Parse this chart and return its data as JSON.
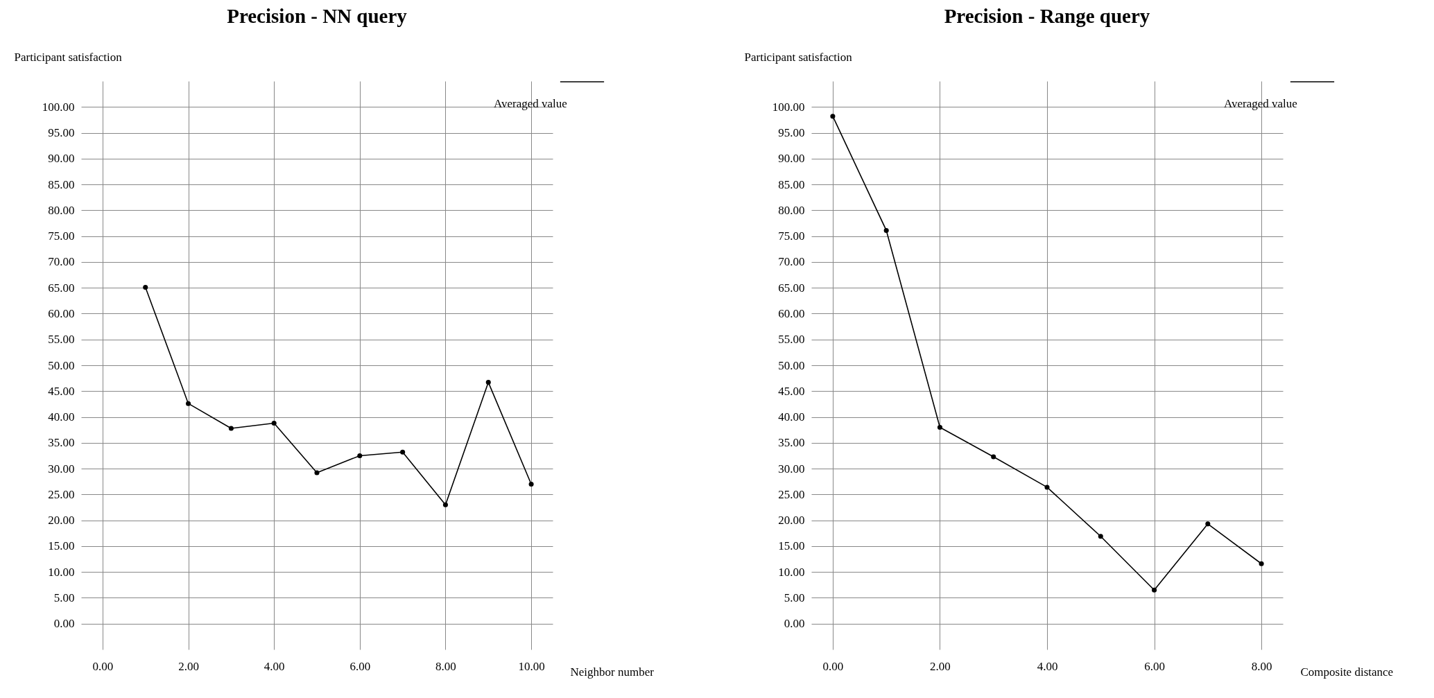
{
  "chart_data": [
    {
      "type": "line",
      "title": "Precision - NN query",
      "xlabel": "Neighbor number",
      "ylabel": "Participant satisfaction",
      "x": [
        1,
        2,
        3,
        4,
        5,
        6,
        7,
        8,
        9,
        10
      ],
      "series": [
        {
          "name": "Averaged value",
          "color": "#000000",
          "values": [
            65.1,
            42.6,
            37.8,
            38.8,
            29.2,
            32.5,
            33.2,
            23.0,
            46.7,
            27.0
          ]
        }
      ],
      "xlim": [
        -0.5,
        10.5
      ],
      "xticks": [
        {
          "value": 0,
          "label": "0.00"
        },
        {
          "value": 2,
          "label": "2.00"
        },
        {
          "value": 4,
          "label": "4.00"
        },
        {
          "value": 6,
          "label": "6.00"
        },
        {
          "value": 8,
          "label": "8.00"
        },
        {
          "value": 10,
          "label": "10.00"
        }
      ],
      "ylim": [
        -5,
        105
      ],
      "yticks": [
        {
          "value": 0,
          "label": "0.00"
        },
        {
          "value": 5,
          "label": "5.00"
        },
        {
          "value": 10,
          "label": "10.00"
        },
        {
          "value": 15,
          "label": "15.00"
        },
        {
          "value": 20,
          "label": "20.00"
        },
        {
          "value": 25,
          "label": "25.00"
        },
        {
          "value": 30,
          "label": "30.00"
        },
        {
          "value": 35,
          "label": "35.00"
        },
        {
          "value": 40,
          "label": "40.00"
        },
        {
          "value": 45,
          "label": "45.00"
        },
        {
          "value": 50,
          "label": "50.00"
        },
        {
          "value": 55,
          "label": "55.00"
        },
        {
          "value": 60,
          "label": "60.00"
        },
        {
          "value": 65,
          "label": "65.00"
        },
        {
          "value": 70,
          "label": "70.00"
        },
        {
          "value": 75,
          "label": "75.00"
        },
        {
          "value": 80,
          "label": "80.00"
        },
        {
          "value": 85,
          "label": "85.00"
        },
        {
          "value": 90,
          "label": "90.00"
        },
        {
          "value": 95,
          "label": "95.00"
        },
        {
          "value": 100,
          "label": "100.00"
        }
      ],
      "grid": true,
      "legend": "top right",
      "marker": "circle",
      "line_style": "solid"
    },
    {
      "type": "line",
      "title": "Precision - Range query",
      "xlabel": "Composite distance",
      "ylabel": "Participant satisfaction",
      "x": [
        0,
        1,
        2,
        3,
        4,
        5,
        6,
        7,
        8
      ],
      "series": [
        {
          "name": "Averaged value",
          "color": "#000000",
          "values": [
            98.2,
            76.1,
            38.0,
            32.3,
            26.4,
            16.9,
            6.5,
            19.3,
            11.6
          ]
        }
      ],
      "xlim": [
        -0.4,
        8.4
      ],
      "xticks": [
        {
          "value": 0,
          "label": "0.00"
        },
        {
          "value": 2,
          "label": "2.00"
        },
        {
          "value": 4,
          "label": "4.00"
        },
        {
          "value": 6,
          "label": "6.00"
        },
        {
          "value": 8,
          "label": "8.00"
        }
      ],
      "ylim": [
        -5,
        105
      ],
      "yticks": [
        {
          "value": 0,
          "label": "0.00"
        },
        {
          "value": 5,
          "label": "5.00"
        },
        {
          "value": 10,
          "label": "10.00"
        },
        {
          "value": 15,
          "label": "15.00"
        },
        {
          "value": 20,
          "label": "20.00"
        },
        {
          "value": 25,
          "label": "25.00"
        },
        {
          "value": 30,
          "label": "30.00"
        },
        {
          "value": 35,
          "label": "35.00"
        },
        {
          "value": 40,
          "label": "40.00"
        },
        {
          "value": 45,
          "label": "45.00"
        },
        {
          "value": 50,
          "label": "50.00"
        },
        {
          "value": 55,
          "label": "55.00"
        },
        {
          "value": 60,
          "label": "60.00"
        },
        {
          "value": 65,
          "label": "65.00"
        },
        {
          "value": 70,
          "label": "70.00"
        },
        {
          "value": 75,
          "label": "75.00"
        },
        {
          "value": 80,
          "label": "80.00"
        },
        {
          "value": 85,
          "label": "85.00"
        },
        {
          "value": 90,
          "label": "90.00"
        },
        {
          "value": 95,
          "label": "95.00"
        },
        {
          "value": 100,
          "label": "100.00"
        }
      ],
      "grid": true,
      "legend": "top right",
      "marker": "circle",
      "line_style": "solid"
    }
  ]
}
